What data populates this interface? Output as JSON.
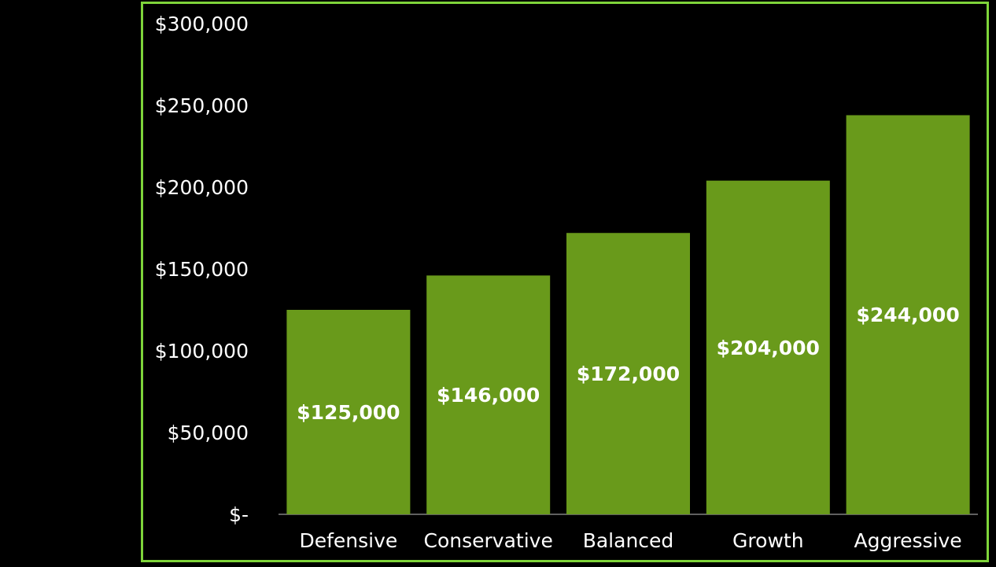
{
  "chart_data": {
    "type": "bar",
    "categories": [
      "Defensive",
      "Conservative",
      "Balanced",
      "Growth",
      "Aggressive"
    ],
    "values": [
      125000,
      146000,
      172000,
      204000,
      244000
    ],
    "data_labels": [
      "$125,000",
      "$146,000",
      "$172,000",
      "$204,000",
      "$244,000"
    ],
    "y_ticks": [
      0,
      50000,
      100000,
      150000,
      200000,
      250000,
      300000
    ],
    "y_tick_labels": [
      "$-",
      "$50,000",
      "$100,000",
      "$150,000",
      "$200,000",
      "$250,000",
      "$300,000"
    ],
    "ylim": [
      0,
      300000
    ],
    "title": "",
    "xlabel": "",
    "ylabel": "",
    "grid": false,
    "legend": "none",
    "colors": {
      "bar": "#699a1b",
      "frame": "#7ed43a",
      "background": "#000000",
      "text": "#ffffff",
      "axis_line": "#bfbfbf"
    }
  }
}
